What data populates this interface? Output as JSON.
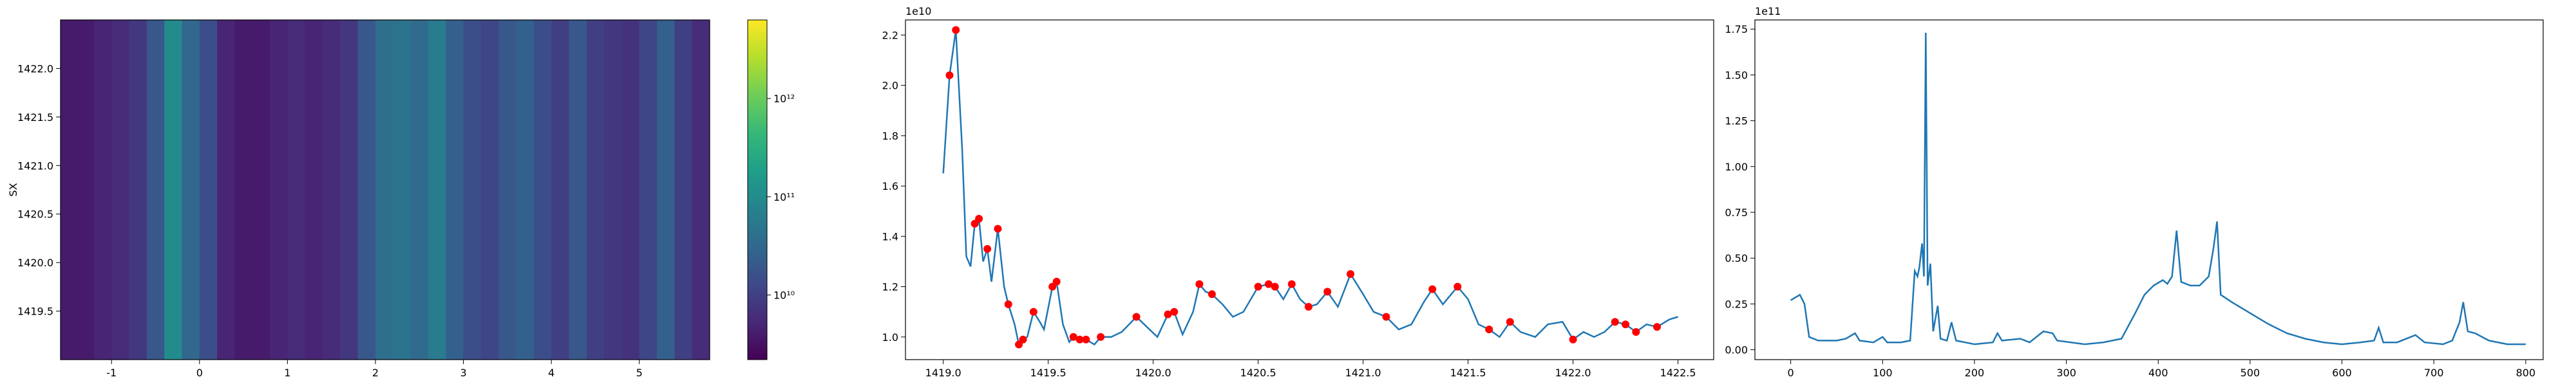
{
  "chart_data": [
    {
      "type": "heatmap",
      "ylabel": "SX",
      "x": [
        -1.5,
        -1.3,
        -1.1,
        -0.9,
        -0.7,
        -0.5,
        -0.3,
        -0.1,
        0.1,
        0.3,
        0.5,
        0.7,
        0.9,
        1.1,
        1.3,
        1.5,
        1.7,
        1.9,
        2.1,
        2.3,
        2.5,
        2.7,
        2.9,
        3.1,
        3.3,
        3.5,
        3.7,
        3.9,
        4.1,
        4.3,
        4.5,
        4.7,
        4.9,
        5.1,
        5.3,
        5.5,
        5.7
      ],
      "values": [
        4000000000.0,
        4000000000.0,
        5000000000.0,
        6000000000.0,
        8000000000.0,
        20000000000.0,
        100000000000.0,
        30000000000.0,
        15000000000.0,
        5000000000.0,
        4000000000.0,
        4000000000.0,
        5000000000.0,
        6000000000.0,
        5000000000.0,
        6000000000.0,
        8000000000.0,
        20000000000.0,
        40000000000.0,
        45000000000.0,
        35000000000.0,
        60000000000.0,
        25000000000.0,
        15000000000.0,
        12000000000.0,
        20000000000.0,
        25000000000.0,
        15000000000.0,
        10000000000.0,
        20000000000.0,
        10000000000.0,
        8000000000.0,
        7000000000.0,
        12000000000.0,
        25000000000.0,
        10000000000.0,
        6000000000.0
      ],
      "xlim": [
        -1.58,
        5.8
      ],
      "xticks": [
        -1,
        0,
        1,
        2,
        3,
        4,
        5
      ],
      "ylim": [
        1419.0,
        1422.5
      ],
      "yticks": [
        1419.5,
        {
          "value": 1420.0,
          "label": "1420.0"
        },
        1420.5,
        {
          "value": 1421.0,
          "label": "1421.0"
        },
        1421.5,
        {
          "value": 1422.0,
          "label": "1422.0"
        }
      ],
      "colorbar": {
        "log": true,
        "colormap": "viridis",
        "clim": [
          2200000000.0,
          6300000000000.0
        ],
        "ticks": [
          {
            "value": 10000000000.0,
            "label": "10¹⁰"
          },
          {
            "value": 100000000000.0,
            "label": "10¹¹"
          },
          {
            "value": 1000000000000.0,
            "label": "10¹²"
          }
        ]
      }
    },
    {
      "type": "line",
      "y_offset_label": "1e10",
      "xlim": [
        1418.82,
        1422.67
      ],
      "xticks": [
        {
          "value": 1419.0,
          "label": "1419.0"
        },
        1419.5,
        {
          "value": 1420.0,
          "label": "1420.0"
        },
        1420.5,
        {
          "value": 1421.0,
          "label": "1421.0"
        },
        1421.5,
        {
          "value": 1422.0,
          "label": "1422.0"
        },
        1422.5
      ],
      "ylim": [
        0.91,
        2.26
      ],
      "yticks": [
        {
          "value": 1.0,
          "label": "1.0"
        },
        1.2,
        1.4,
        1.6,
        1.8,
        {
          "value": 2.0,
          "label": "2.0"
        },
        2.2
      ],
      "series": [
        {
          "color": "#1f77b4",
          "x": [
            1419.0,
            1419.03,
            1419.06,
            1419.09,
            1419.11,
            1419.13,
            1419.15,
            1419.17,
            1419.19,
            1419.21,
            1419.23,
            1419.26,
            1419.29,
            1419.31,
            1419.34,
            1419.36,
            1419.38,
            1419.4,
            1419.43,
            1419.46,
            1419.48,
            1419.52,
            1419.54,
            1419.57,
            1419.6,
            1419.62,
            1419.65,
            1419.68,
            1419.72,
            1419.75,
            1419.8,
            1419.85,
            1419.92,
            1419.97,
            1420.02,
            1420.07,
            1420.1,
            1420.14,
            1420.19,
            1420.22,
            1420.25,
            1420.28,
            1420.33,
            1420.38,
            1420.43,
            1420.5,
            1420.55,
            1420.58,
            1420.62,
            1420.66,
            1420.7,
            1420.74,
            1420.78,
            1420.83,
            1420.88,
            1420.94,
            1421.0,
            1421.05,
            1421.11,
            1421.17,
            1421.23,
            1421.29,
            1421.33,
            1421.38,
            1421.45,
            1421.5,
            1421.55,
            1421.6,
            1421.65,
            1421.7,
            1421.75,
            1421.82,
            1421.88,
            1421.95,
            1422.0,
            1422.05,
            1422.1,
            1422.15,
            1422.2,
            1422.25,
            1422.3,
            1422.35,
            1422.4,
            1422.46,
            1422.5
          ],
          "values": [
            1.65,
            2.04,
            2.22,
            1.75,
            1.32,
            1.28,
            1.45,
            1.47,
            1.3,
            1.35,
            1.22,
            1.43,
            1.2,
            1.13,
            1.05,
            0.97,
            0.99,
            1.0,
            1.1,
            1.06,
            1.03,
            1.2,
            1.22,
            1.05,
            0.98,
            1.0,
            0.99,
            0.99,
            0.97,
            1.0,
            1.0,
            1.02,
            1.08,
            1.04,
            1.0,
            1.09,
            1.1,
            1.01,
            1.1,
            1.21,
            1.18,
            1.17,
            1.13,
            1.08,
            1.1,
            1.2,
            1.21,
            1.2,
            1.15,
            1.21,
            1.15,
            1.12,
            1.13,
            1.18,
            1.12,
            1.25,
            1.17,
            1.1,
            1.08,
            1.03,
            1.05,
            1.14,
            1.19,
            1.13,
            1.2,
            1.15,
            1.05,
            1.03,
            1.0,
            1.06,
            1.02,
            1.0,
            1.05,
            1.06,
            0.99,
            1.02,
            1.0,
            1.02,
            1.06,
            1.05,
            1.02,
            1.05,
            1.04,
            1.07,
            1.08
          ]
        },
        {
          "color": "red",
          "marker": "o",
          "x": [
            1419.03,
            1419.06,
            1419.15,
            1419.17,
            1419.21,
            1419.26,
            1419.31,
            1419.36,
            1419.38,
            1419.43,
            1419.52,
            1419.54,
            1419.62,
            1419.65,
            1419.68,
            1419.75,
            1419.92,
            1420.07,
            1420.1,
            1420.22,
            1420.28,
            1420.5,
            1420.55,
            1420.58,
            1420.66,
            1420.74,
            1420.83,
            1420.94,
            1421.11,
            1421.33,
            1421.45,
            1421.6,
            1421.7,
            1422.0,
            1422.2,
            1422.25,
            1422.3,
            1422.4
          ],
          "values": [
            2.04,
            2.22,
            1.45,
            1.47,
            1.35,
            1.43,
            1.13,
            0.97,
            0.99,
            1.1,
            1.2,
            1.22,
            1.0,
            0.99,
            0.99,
            1.0,
            1.08,
            1.09,
            1.1,
            1.21,
            1.17,
            1.2,
            1.21,
            1.2,
            1.21,
            1.12,
            1.18,
            1.25,
            1.08,
            1.19,
            1.2,
            1.03,
            1.06,
            0.99,
            1.06,
            1.05,
            1.02,
            1.04
          ]
        }
      ]
    },
    {
      "type": "line",
      "y_offset_label": "1e11",
      "xlim": [
        -39,
        819
      ],
      "xticks": [
        0,
        100,
        200,
        300,
        400,
        500,
        600,
        700,
        800
      ],
      "ylim": [
        -0.054,
        1.8
      ],
      "yticks": [
        {
          "value": 0.0,
          "label": "0.00"
        },
        0.25,
        {
          "value": 0.5,
          "label": "0.50"
        },
        0.75,
        {
          "value": 1.0,
          "label": "1.00"
        },
        1.25,
        {
          "value": 1.5,
          "label": "1.50"
        },
        1.75
      ],
      "series": [
        {
          "color": "#1f77b4",
          "x": [
            0,
            10,
            15,
            20,
            30,
            50,
            60,
            70,
            75,
            90,
            100,
            105,
            120,
            130,
            135,
            138,
            140,
            143,
            145,
            147,
            149,
            152,
            155,
            160,
            163,
            170,
            175,
            180,
            200,
            220,
            225,
            230,
            250,
            260,
            275,
            285,
            290,
            320,
            340,
            360,
            375,
            385,
            395,
            405,
            410,
            415,
            420,
            425,
            435,
            445,
            455,
            460,
            464,
            468,
            480,
            500,
            520,
            540,
            560,
            580,
            600,
            620,
            635,
            640,
            645,
            660,
            680,
            690,
            710,
            720,
            728,
            732,
            737,
            745,
            760,
            780,
            800
          ],
          "values": [
            0.27,
            0.3,
            0.25,
            0.07,
            0.05,
            0.05,
            0.06,
            0.09,
            0.05,
            0.04,
            0.07,
            0.04,
            0.04,
            0.05,
            0.43,
            0.4,
            0.45,
            0.58,
            0.4,
            1.73,
            0.35,
            0.47,
            0.1,
            0.24,
            0.06,
            0.05,
            0.15,
            0.05,
            0.03,
            0.04,
            0.09,
            0.05,
            0.06,
            0.04,
            0.1,
            0.09,
            0.05,
            0.03,
            0.04,
            0.06,
            0.2,
            0.3,
            0.35,
            0.38,
            0.36,
            0.4,
            0.65,
            0.37,
            0.35,
            0.35,
            0.4,
            0.55,
            0.7,
            0.3,
            0.26,
            0.2,
            0.14,
            0.09,
            0.06,
            0.04,
            0.03,
            0.04,
            0.05,
            0.12,
            0.04,
            0.04,
            0.08,
            0.04,
            0.03,
            0.05,
            0.15,
            0.26,
            0.1,
            0.09,
            0.05,
            0.03,
            0.03
          ]
        }
      ]
    }
  ]
}
